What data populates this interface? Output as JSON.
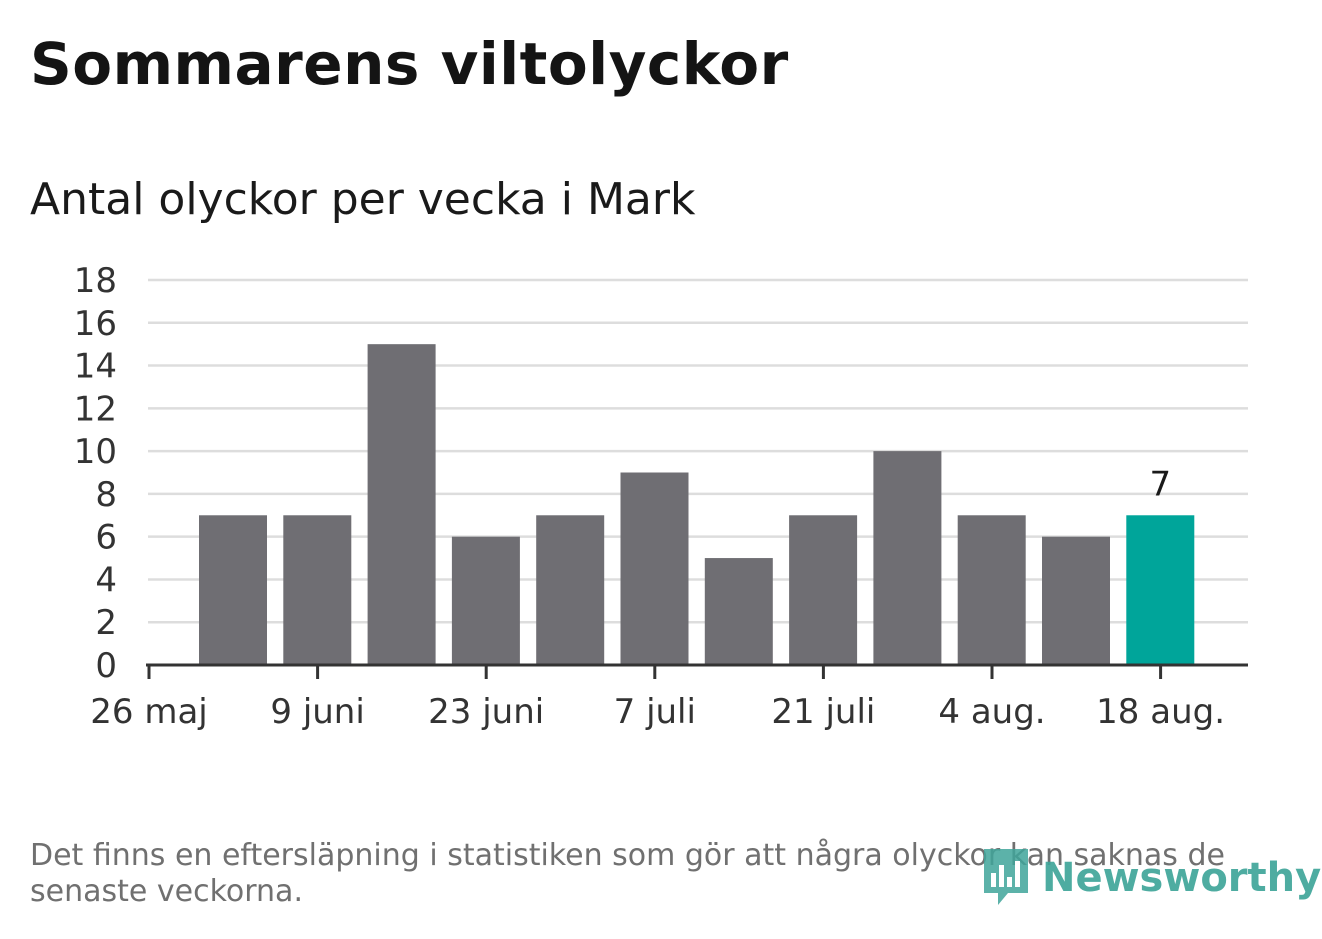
{
  "header": {
    "title": "Sommarens viltolyckor",
    "subtitle": "Antal olyckor per vecka i Mark"
  },
  "chart_data": {
    "type": "bar",
    "categories": [
      "2 juni",
      "9 juni",
      "16 juni",
      "23 juni",
      "30 juni",
      "7 juli",
      "14 juli",
      "21 juli",
      "28 juli",
      "4 aug.",
      "11 aug.",
      "18 aug."
    ],
    "values": [
      7,
      7,
      15,
      6,
      7,
      9,
      5,
      7,
      10,
      7,
      6,
      7
    ],
    "x_tick_labels": [
      "26 maj",
      "9 juni",
      "23 juni",
      "7 juli",
      "21 juli",
      "4 aug.",
      "18 aug."
    ],
    "y_ticks": [
      0,
      2,
      4,
      6,
      8,
      10,
      12,
      14,
      16,
      18
    ],
    "ylim": [
      0,
      18
    ],
    "grid": true,
    "highlight_index": 11,
    "highlight_label": "7",
    "colors": {
      "bar": "#6f6e73",
      "highlight": "#00a59a",
      "grid": "#dddddd",
      "axis": "#333333"
    }
  },
  "footer": {
    "note": "Det finns en eftersläpning i statistiken som gör att några olyckor kan saknas de senaste veckorna.",
    "brand": "Newsworthy",
    "brand_icon": "bar-chart-speech-icon",
    "brand_color": "#3fa59a"
  }
}
